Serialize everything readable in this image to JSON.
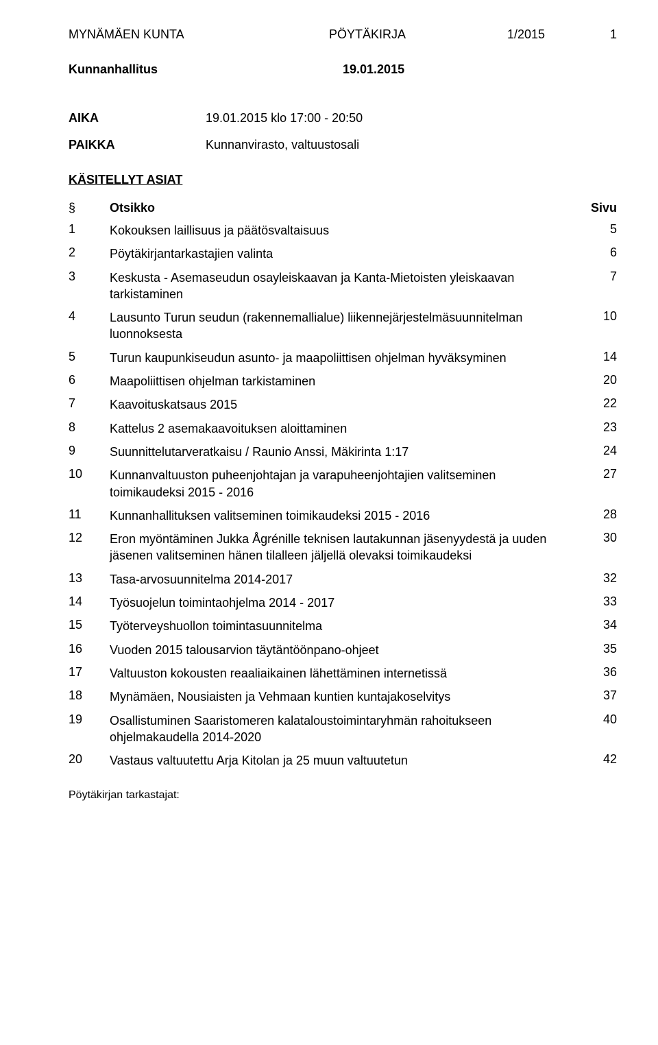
{
  "header": {
    "left": "MYNÄMÄEN KUNTA",
    "center": "PÖYTÄKIRJA",
    "right": "1/2015",
    "pagenum": "1"
  },
  "subheader": {
    "left": "Kunnanhallitus",
    "right": "19.01.2015"
  },
  "aika": {
    "label": "AIKA",
    "value": "19.01.2015 klo 17:00 - 20:50"
  },
  "paikka": {
    "label": "PAIKKA",
    "value": "Kunnanvirasto, valtuustosali"
  },
  "asiat_title": "KÄSITELLYT ASIAT",
  "table_head": {
    "sym": "§",
    "title": "Otsikko",
    "page": "Sivu"
  },
  "items": [
    {
      "num": "1",
      "title": "Kokouksen laillisuus ja päätösvaltaisuus",
      "page": "5"
    },
    {
      "num": "2",
      "title": "Pöytäkirjantarkastajien valinta",
      "page": "6"
    },
    {
      "num": "3",
      "title": "Keskusta - Asemaseudun osayleiskaavan ja Kanta-Mietoisten yleiskaavan tarkistaminen",
      "page": "7"
    },
    {
      "num": "4",
      "title": "Lausunto Turun seudun (rakennemallialue) liikennejärjestelmäsuunnitelman luonnoksesta",
      "page": "10"
    },
    {
      "num": "5",
      "title": "Turun kaupunkiseudun asunto- ja maapoliittisen ohjelman hyväksyminen",
      "page": "14"
    },
    {
      "num": "6",
      "title": "Maapoliittisen ohjelman tarkistaminen",
      "page": "20"
    },
    {
      "num": "7",
      "title": "Kaavoituskatsaus 2015",
      "page": "22"
    },
    {
      "num": "8",
      "title": "Kattelus 2 asemakaavoituksen aloittaminen",
      "page": "23"
    },
    {
      "num": "9",
      "title": "Suunnittelutarveratkaisu / Raunio Anssi, Mäkirinta 1:17",
      "page": "24"
    },
    {
      "num": "10",
      "title": "Kunnanvaltuuston puheenjohtajan ja varapuheenjohtajien valitseminen toimikaudeksi 2015 - 2016",
      "page": "27"
    },
    {
      "num": "11",
      "title": "Kunnanhallituksen valitseminen toimikaudeksi 2015 - 2016",
      "page": "28"
    },
    {
      "num": "12",
      "title": "Eron myöntäminen Jukka Ågrénille teknisen lautakunnan jäsenyydestä ja uuden jäsenen valitseminen hänen tilalleen jäljellä olevaksi toimikaudeksi",
      "page": "30"
    },
    {
      "num": "13",
      "title": "Tasa-arvosuunnitelma 2014-2017",
      "page": "32"
    },
    {
      "num": "14",
      "title": "Työsuojelun toimintaohjelma 2014 - 2017",
      "page": "33"
    },
    {
      "num": "15",
      "title": "Työterveyshuollon toimintasuunnitelma",
      "page": "34"
    },
    {
      "num": "16",
      "title": "Vuoden 2015 talousarvion täytäntöönpano-ohjeet",
      "page": "35"
    },
    {
      "num": "17",
      "title": "Valtuuston kokousten reaaliaikainen lähettäminen internetissä",
      "page": "36"
    },
    {
      "num": "18",
      "title": "Mynämäen, Nousiaisten ja Vehmaan kuntien kuntajakoselvitys",
      "page": "37"
    },
    {
      "num": "19",
      "title": "Osallistuminen Saaristomeren kalataloustoimintaryhmän rahoitukseen ohjelmakaudella 2014-2020",
      "page": "40"
    },
    {
      "num": "20",
      "title": "Vastaus valtuutettu Arja Kitolan ja 25 muun valtuutetun",
      "page": "42"
    }
  ],
  "footer": "Pöytäkirjan tarkastajat:"
}
